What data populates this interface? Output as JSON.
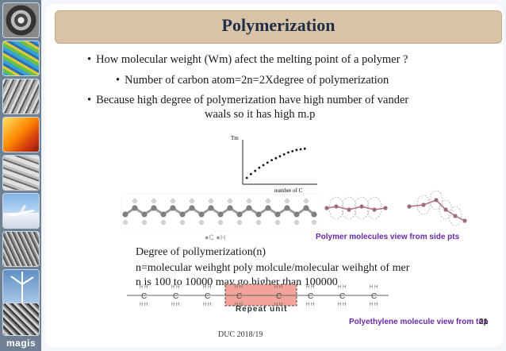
{
  "sidebar": {
    "thumbnails": [
      "turbine-icon",
      "colormap-icon",
      "fibers-icon",
      "heat-cube-icon",
      "grain-icon",
      "airplane-icon",
      "texture-icon",
      "wind-turbine-icon",
      "grain-structure-icon"
    ],
    "logo": "magis"
  },
  "slide": {
    "title": "Polymerization",
    "bullet_symbol": "•",
    "bullets": [
      "How molecular weight (Wm) afect the melting point of a polymer ?",
      "Number of carbon atom=2n=2Xdegree of polymerization",
      "Because high degree of polymerization have high number of vander",
      "waals so it has high m.p"
    ],
    "legend": "●C ●H",
    "polymer_caption": "Polymer molecules  view from side pts",
    "text_lines": [
      "Degree of pollymerization(n)",
      "n=molecular weihght poly molcule/molecular weihght of mer",
      "n is 100 to 10000 may go higher than 100000"
    ],
    "repeat_unit_label": "Repeat unit",
    "footer": "DUC 2018/19",
    "page_number": "21",
    "pe_caption": "Polyethylene molecule view from top"
  },
  "chart_data": {
    "type": "scatter",
    "title": "",
    "xlabel": "number of C",
    "ylabel": "Tm",
    "x": [
      1,
      2,
      3,
      4,
      5,
      6,
      7,
      8,
      9,
      10,
      11,
      12,
      13,
      14,
      15
    ],
    "y": [
      1.0,
      1.6,
      2.1,
      2.6,
      3.0,
      3.4,
      3.8,
      4.1,
      4.4,
      4.7,
      5.0,
      5.2,
      5.4,
      5.5,
      5.6
    ],
    "xlim": [
      0,
      18
    ],
    "ylim": [
      0,
      7
    ],
    "grid": false
  }
}
